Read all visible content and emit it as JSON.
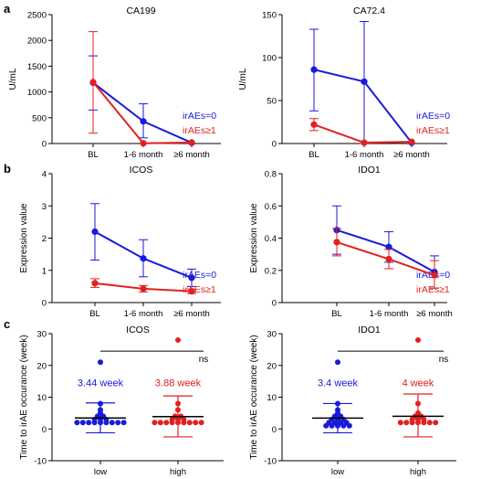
{
  "panel_labels": [
    "a",
    "b",
    "c"
  ],
  "colors": {
    "blue": "#1a1adc",
    "red": "#e32020",
    "axis": "#000000"
  },
  "chart_data": [
    {
      "id": "a1",
      "type": "line",
      "title": "CA199",
      "ylabel": "U/mL",
      "categories": [
        "BL",
        "1-6 month",
        "≥6 month"
      ],
      "ylim": [
        0,
        2500
      ],
      "yticks": [
        0,
        500,
        1000,
        1500,
        2000,
        2500
      ],
      "series": [
        {
          "name": "irAEs=0",
          "color": "#1a1adc",
          "values": [
            1180,
            430,
            15
          ],
          "err_low": [
            650,
            110,
            15
          ],
          "err_high": [
            1700,
            770,
            15
          ]
        },
        {
          "name": "irAEs≥1",
          "color": "#e32020",
          "values": [
            1190,
            5,
            20
          ],
          "err_low": [
            200,
            5,
            20
          ],
          "err_high": [
            2170,
            5,
            20
          ]
        }
      ],
      "legend": "right"
    },
    {
      "id": "a2",
      "type": "line",
      "title": "CA72.4",
      "ylabel": "U/mL",
      "categories": [
        "BL",
        "1-6 month",
        "≥6 month"
      ],
      "ylim": [
        0,
        150
      ],
      "yticks": [
        0,
        50,
        100,
        150
      ],
      "series": [
        {
          "name": "irAEs=0",
          "color": "#1a1adc",
          "values": [
            86,
            72,
            1
          ],
          "err_low": [
            38,
            0,
            1
          ],
          "err_high": [
            133,
            142,
            1
          ]
        },
        {
          "name": "irAEs≥1",
          "color": "#e32020",
          "values": [
            22,
            1,
            2
          ],
          "err_low": [
            15,
            1,
            2
          ],
          "err_high": [
            29,
            1,
            2
          ]
        }
      ],
      "legend": "right"
    },
    {
      "id": "b1",
      "type": "line",
      "title": "ICOS",
      "ylabel": "Expression value",
      "categories": [
        "BL",
        "1-6 month",
        "≥6 month"
      ],
      "ylim": [
        0,
        4
      ],
      "yticks": [
        0,
        1,
        2,
        3,
        4
      ],
      "series": [
        {
          "name": "irAEs=0",
          "color": "#1a1adc",
          "values": [
            2.2,
            1.37,
            0.77
          ],
          "err_low": [
            1.32,
            0.8,
            0.5
          ],
          "err_high": [
            3.07,
            1.95,
            1.04
          ]
        },
        {
          "name": "irAEs≥1",
          "color": "#e32020",
          "values": [
            0.6,
            0.43,
            0.35
          ],
          "err_low": [
            0.47,
            0.33,
            0.28
          ],
          "err_high": [
            0.74,
            0.53,
            0.42
          ]
        }
      ],
      "legend": "right"
    },
    {
      "id": "b2",
      "type": "line",
      "title": "IDO1",
      "ylabel": "Expression value",
      "categories": [
        "BL",
        "1-6 month",
        "≥6 month"
      ],
      "ylim": [
        0,
        0.8
      ],
      "yticks": [
        0,
        0.2,
        0.4,
        0.6,
        0.8
      ],
      "series": [
        {
          "name": "irAEs=0",
          "color": "#1a1adc",
          "values": [
            0.45,
            0.345,
            0.19
          ],
          "err_low": [
            0.3,
            0.25,
            0.09
          ],
          "err_high": [
            0.6,
            0.44,
            0.29
          ]
        },
        {
          "name": "irAEs≥1",
          "color": "#e32020",
          "values": [
            0.375,
            0.27,
            0.17
          ],
          "err_low": [
            0.29,
            0.21,
            0.09
          ],
          "err_high": [
            0.46,
            0.33,
            0.26
          ]
        }
      ],
      "legend": "right"
    },
    {
      "id": "c1",
      "type": "scatter",
      "title": "ICOS",
      "ylabel": "Time to irAE occurance (week)",
      "categories": [
        "low",
        "high"
      ],
      "ylim": [
        -10,
        30
      ],
      "yticks": [
        -10,
        0,
        10,
        20,
        30
      ],
      "significance": "ns",
      "groups": [
        {
          "category": "low",
          "color": "#1a1adc",
          "label": "3.44 week",
          "mean": 3.44,
          "sd_low": -1.2,
          "sd_high": 8.2,
          "points": [
            21,
            8,
            6,
            5,
            4,
            4,
            3,
            3,
            3,
            2,
            2,
            2,
            2,
            2,
            2,
            2,
            2,
            2
          ]
        },
        {
          "category": "high",
          "color": "#e32020",
          "label": "3.88 week",
          "mean": 3.88,
          "sd_low": -2.5,
          "sd_high": 10.4,
          "points": [
            28,
            8,
            6,
            4,
            4,
            3,
            3,
            3,
            2,
            2,
            2,
            2,
            2,
            2,
            2,
            2,
            2
          ]
        }
      ]
    },
    {
      "id": "c2",
      "type": "scatter",
      "title": "IDO1",
      "ylabel": "Time to irAE occurance (week)",
      "categories": [
        "low",
        "high"
      ],
      "ylim": [
        -10,
        30
      ],
      "yticks": [
        -10,
        0,
        10,
        20,
        30
      ],
      "significance": "ns",
      "groups": [
        {
          "category": "low",
          "color": "#1a1adc",
          "label": "3.4 week",
          "mean": 3.4,
          "sd_low": -1.2,
          "sd_high": 8.0,
          "points": [
            21,
            8,
            6,
            5,
            4,
            4,
            3,
            3,
            3,
            2,
            2,
            2,
            2,
            1,
            1,
            1,
            1,
            1
          ]
        },
        {
          "category": "high",
          "color": "#e32020",
          "label": "4 week",
          "mean": 4,
          "sd_low": -2.5,
          "sd_high": 11.0,
          "points": [
            28,
            8,
            5,
            4,
            4,
            3,
            3,
            3,
            2,
            2,
            2,
            2,
            2,
            2,
            2
          ]
        }
      ]
    }
  ]
}
